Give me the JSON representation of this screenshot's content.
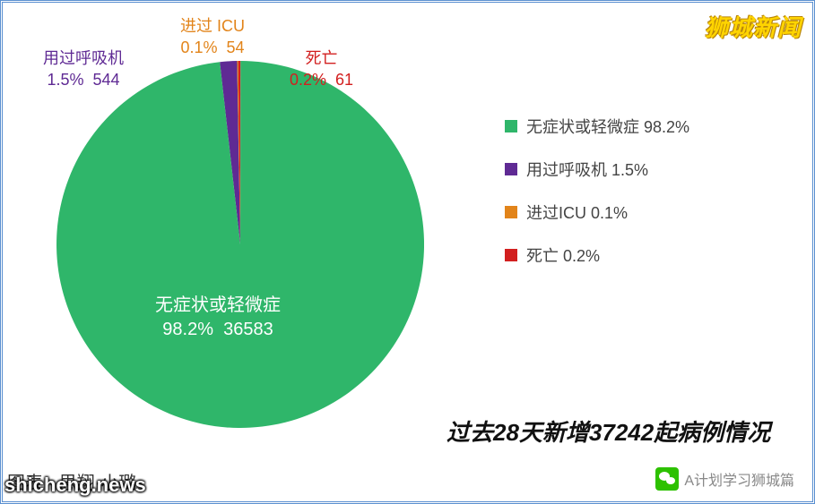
{
  "chart": {
    "type": "pie",
    "background_color": "#ffffff",
    "border_color": "#5a8fd0",
    "slices": [
      {
        "key": "asymptomatic",
        "label": "无症状或轻微症",
        "percent": "98.2%",
        "count": "36583",
        "color": "#2fb66a",
        "label_color": "#ffffff"
      },
      {
        "key": "ventilator",
        "label": "用过呼吸机",
        "percent": "1.5%",
        "count": "544",
        "color": "#5f2a94",
        "label_color": "#5f2a94"
      },
      {
        "key": "icu",
        "label": "进过 ICU",
        "percent": "0.1%",
        "count": "54",
        "color": "#e2841a",
        "label_color": "#e2841a"
      },
      {
        "key": "death",
        "label": "死亡",
        "percent": "0.2%",
        "count": "61",
        "color": "#d21f1f",
        "label_color": "#d21f1f"
      }
    ],
    "center_label_fontsize": 20,
    "outer_label_fontsize": 18,
    "legend_fontsize": 18,
    "legend_text_color": "#444444"
  },
  "legend": {
    "items": [
      {
        "text": "无症状或轻微症 98.2%",
        "color": "#2fb66a"
      },
      {
        "text": "用过呼吸机 1.5%",
        "color": "#5f2a94"
      },
      {
        "text": "进过ICU 0.1%",
        "color": "#e2841a"
      },
      {
        "text": "死亡 0.2%",
        "color": "#d21f1f"
      }
    ]
  },
  "title": "过去28天新增37242起病例情况",
  "watermarks": {
    "top_right": "狮城新闻",
    "bottom_left": "shicheng.news",
    "bottom_right": "A计划学习狮城篇"
  },
  "footer_credit": "图表 · 思翔·小璐"
}
